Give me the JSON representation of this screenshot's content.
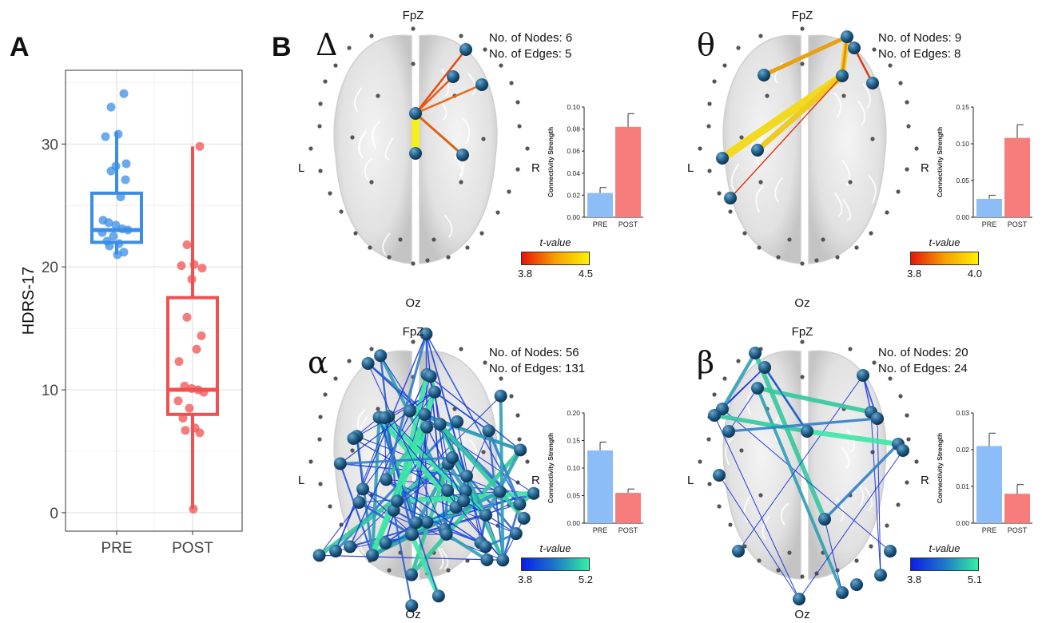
{
  "figure": {
    "panel_a_letter": "A",
    "panel_b_letter": "B"
  },
  "chart_data": [
    {
      "type": "box",
      "panel": "A",
      "ylabel": "HDRS-17",
      "categories": [
        "PRE",
        "POST"
      ],
      "ylim": [
        -1.5,
        36
      ],
      "yticks": [
        0,
        10,
        20,
        30
      ],
      "grid": true,
      "colors": {
        "PRE": "#3A8EE6",
        "POST": "#F05050"
      },
      "boxes": [
        {
          "name": "PRE",
          "whisker_low": 21,
          "q1": 22,
          "median": 23,
          "q3": 26,
          "whisker_high": 31
        },
        {
          "name": "POST",
          "whisker_low": 0.3,
          "q1": 8,
          "median": 10,
          "q3": 17.5,
          "whisker_high": 29.8
        }
      ],
      "points": {
        "PRE": [
          34.1,
          33,
          30.8,
          30.6,
          28.4,
          28.2,
          27.8,
          27.1,
          25.7,
          23.8,
          23.6,
          23.4,
          23.1,
          23.0,
          22.8,
          22.5,
          22.1,
          21.9,
          21.7,
          21.2,
          21.0
        ],
        "POST": [
          29.8,
          21.8,
          20.2,
          20.1,
          19.9,
          19.0,
          15.9,
          14.4,
          13.3,
          12.3,
          10.3,
          10.1,
          10.0,
          9.8,
          9.1,
          8.5,
          7.7,
          6.9,
          6.7,
          6.5,
          0.3
        ]
      }
    },
    {
      "type": "bar",
      "panel": "B-delta",
      "ylabel": "Connectivity Strength",
      "categories": [
        "PRE",
        "POST"
      ],
      "values": [
        0.022,
        0.082
      ],
      "errors": [
        0.005,
        0.012
      ],
      "ylim": [
        0,
        0.1
      ],
      "yticks": [
        "0.00",
        "0.02",
        "0.04",
        "0.06",
        "0.08",
        "0.10"
      ]
    },
    {
      "type": "bar",
      "panel": "B-theta",
      "ylabel": "Connectivity Strength",
      "categories": [
        "PRE",
        "POST"
      ],
      "values": [
        0.025,
        0.108
      ],
      "errors": [
        0.005,
        0.018
      ],
      "ylim": [
        0,
        0.15
      ],
      "yticks": [
        "0.00",
        "0.05",
        "0.10",
        "0.15"
      ]
    },
    {
      "type": "bar",
      "panel": "B-alpha",
      "ylabel": "Connectivity Strength",
      "categories": [
        "PRE",
        "POST"
      ],
      "values": [
        0.132,
        0.055
      ],
      "errors": [
        0.015,
        0.007
      ],
      "ylim": [
        0,
        0.2
      ],
      "yticks": [
        "0.00",
        "0.05",
        "0.10",
        "0.15",
        "0.20"
      ]
    },
    {
      "type": "bar",
      "panel": "B-beta",
      "ylabel": "Connectivity Strength",
      "categories": [
        "PRE",
        "POST"
      ],
      "values": [
        0.021,
        0.008
      ],
      "errors": [
        0.0035,
        0.0025
      ],
      "ylim": [
        0,
        0.03
      ],
      "yticks": [
        "0.00",
        "0.01",
        "0.02",
        "0.03"
      ]
    }
  ],
  "networks": [
    {
      "band": "Δ",
      "nodes_text": "No. of Nodes: 6",
      "edges_text": "No. of Edges: 5",
      "cbar_title": "t-value",
      "cbar_min": "3.8",
      "cbar_max": "4.5",
      "cbar_colors": [
        "#E8140A",
        "#F5A000",
        "#FFF000"
      ],
      "labels": {
        "top": "FpZ",
        "bottom": "Oz",
        "left": "L",
        "right": "R"
      }
    },
    {
      "band": "θ",
      "nodes_text": "No. of Nodes: 9",
      "edges_text": "No. of Edges: 8",
      "cbar_title": "t-value",
      "cbar_min": "3.8",
      "cbar_max": "4.0",
      "cbar_colors": [
        "#E8140A",
        "#F5A000",
        "#FFF000"
      ],
      "labels": {
        "top": "FpZ",
        "bottom": "Oz",
        "left": "L",
        "right": "R"
      }
    },
    {
      "band": "α",
      "nodes_text": "No. of Nodes: 56",
      "edges_text": "No. of Edges: 131",
      "cbar_title": "t-value",
      "cbar_min": "3.8",
      "cbar_max": "5.2",
      "cbar_colors": [
        "#0A1EE6",
        "#1E78C8",
        "#33F0A0"
      ],
      "labels": {
        "top": "FpZ",
        "bottom": "Oz",
        "left": "L",
        "right": "R"
      }
    },
    {
      "band": "β",
      "nodes_text": "No. of Nodes: 20",
      "edges_text": "No. of Edges: 24",
      "cbar_title": "t-value",
      "cbar_min": "3.8",
      "cbar_max": "5.1",
      "cbar_colors": [
        "#0A1EE6",
        "#1E78C8",
        "#33F0A0"
      ],
      "labels": {
        "top": "FpZ",
        "bottom": "Oz",
        "left": "L",
        "right": "R"
      }
    }
  ]
}
